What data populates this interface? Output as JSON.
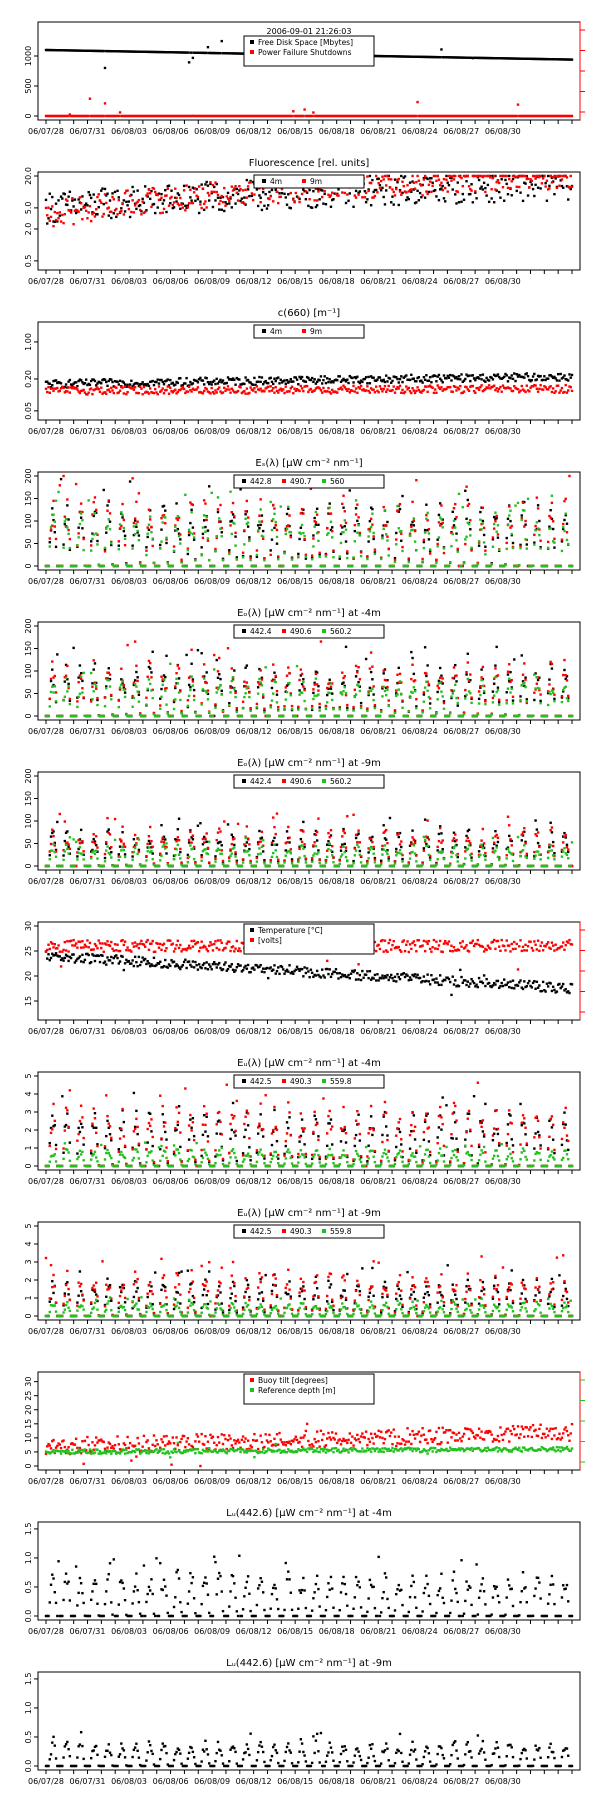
{
  "timestamp": "2006-09-01 21:26:03",
  "dates": [
    "06/07/28",
    "06/07/31",
    "06/08/03",
    "06/08/06",
    "06/08/09",
    "06/08/12",
    "06/08/15",
    "06/08/18",
    "06/08/21",
    "06/08/24",
    "06/08/27",
    "06/08/30"
  ],
  "colors": {
    "black": "#000000",
    "red": "#ff0000",
    "green": "#22c01e"
  },
  "chart_data": [
    {
      "type": "scatter",
      "title": "",
      "ylabel_left_ticks": [
        "0",
        "500",
        "1000"
      ],
      "ylim": [
        0,
        1500
      ],
      "legend_position": "top-center",
      "series": [
        {
          "name": "Free Disk Space [Mbytes]",
          "color": "black",
          "trend": [
            1100,
            940
          ],
          "jitter": 0
        },
        {
          "name": "Power Failure Shutdowns",
          "color": "red",
          "trend": [
            0,
            0
          ],
          "jitter": 0
        }
      ],
      "has_right_axis": true
    },
    {
      "type": "scatter",
      "title": "Fluorescence [rel. units]",
      "yscale": "log",
      "yticks": [
        "0.5",
        "2.0",
        "5.0",
        "20.0"
      ],
      "ylim": [
        0.4,
        20
      ],
      "legend_position": "top-center",
      "series": [
        {
          "name": "4m",
          "color": "black",
          "trend": [
            5,
            14
          ],
          "jitter": 0.6
        },
        {
          "name": "9m",
          "color": "red",
          "trend": [
            3.5,
            20
          ],
          "jitter": 0.5
        }
      ]
    },
    {
      "type": "scatter",
      "title": "c(660) [m⁻¹]",
      "yscale": "log",
      "yticks": [
        "0.05",
        "0.20",
        "1.00"
      ],
      "ylim": [
        0.04,
        2
      ],
      "legend_position": "top-center",
      "series": [
        {
          "name": "4m",
          "color": "black",
          "trend": [
            0.16,
            0.22
          ],
          "jitter": 0.15
        },
        {
          "name": "9m",
          "color": "red",
          "trend": [
            0.12,
            0.13
          ],
          "jitter": 0.15
        }
      ]
    },
    {
      "type": "scatter",
      "title": "Eₛ(λ) [μW cm⁻² nm⁻¹]",
      "yticks": [
        "0",
        "50",
        "100",
        "150",
        "200"
      ],
      "ylim": [
        0,
        200
      ],
      "legend_position": "top-center",
      "series": [
        {
          "name": "442.8",
          "color": "black",
          "peak": 150
        },
        {
          "name": "490.7",
          "color": "red",
          "peak": 160
        },
        {
          "name": "560",
          "color": "green",
          "peak": 130
        }
      ]
    },
    {
      "type": "scatter",
      "title": "Eₒ(λ) [μW cm⁻² nm⁻¹] at -4m",
      "yticks": [
        "0",
        "50",
        "100",
        "150",
        "200"
      ],
      "ylim": [
        0,
        200
      ],
      "legend_position": "top-center",
      "series": [
        {
          "name": "442.4",
          "color": "black",
          "peak": 120
        },
        {
          "name": "490.6",
          "color": "red",
          "peak": 130
        },
        {
          "name": "560.2",
          "color": "green",
          "peak": 90
        }
      ]
    },
    {
      "type": "scatter",
      "title": "Eₒ(λ) [μW cm⁻² nm⁻¹] at -9m",
      "yticks": [
        "0",
        "50",
        "100",
        "150",
        "200"
      ],
      "ylim": [
        0,
        200
      ],
      "legend_position": "top-center",
      "series": [
        {
          "name": "442.4",
          "color": "black",
          "peak": 85
        },
        {
          "name": "490.6",
          "color": "red",
          "peak": 90
        },
        {
          "name": "560.2",
          "color": "green",
          "peak": 50
        }
      ]
    },
    {
      "type": "scatter",
      "title": "",
      "yticks": [
        "15",
        "20",
        "25",
        "30"
      ],
      "ylim": [
        12,
        30
      ],
      "legend_position": "top-center",
      "series": [
        {
          "name": "Temperature [°C]",
          "color": "black",
          "trend": [
            24,
            17.5
          ],
          "jitter": 1.0
        },
        {
          "name": "[volts]",
          "color": "red",
          "trend": [
            26,
            26
          ],
          "jitter": 1.2
        }
      ],
      "has_right_axis": true
    },
    {
      "type": "scatter",
      "title": "Eᵤ(λ) [μW cm⁻² nm⁻¹] at -4m",
      "yticks": [
        "0",
        "1",
        "2",
        "3",
        "4",
        "5"
      ],
      "ylim": [
        0,
        5
      ],
      "legend_position": "top-center",
      "series": [
        {
          "name": "442.5",
          "color": "black",
          "peak": 3.2
        },
        {
          "name": "490.3",
          "color": "red",
          "peak": 3.6
        },
        {
          "name": "559.8",
          "color": "green",
          "peak": 1.0
        }
      ]
    },
    {
      "type": "scatter",
      "title": "Eᵤ(λ) [μW cm⁻² nm⁻¹] at -9m",
      "yticks": [
        "0",
        "1",
        "2",
        "3",
        "4",
        "5"
      ],
      "ylim": [
        0,
        5
      ],
      "legend_position": "top-center",
      "series": [
        {
          "name": "442.5",
          "color": "black",
          "peak": 2.2
        },
        {
          "name": "490.3",
          "color": "red",
          "peak": 2.6
        },
        {
          "name": "559.8",
          "color": "green",
          "peak": 0.8
        }
      ]
    },
    {
      "type": "scatter",
      "title": "",
      "yticks": [
        "0",
        "5",
        "10",
        "15",
        "20",
        "25",
        "30"
      ],
      "ylim": [
        0,
        32
      ],
      "legend_position": "top-center",
      "series": [
        {
          "name": "Buoy tilt [degrees]",
          "color": "red",
          "trend": [
            7,
            12
          ],
          "jitter": 3.0
        },
        {
          "name": "Reference depth [m]",
          "color": "green",
          "trend": [
            5,
            6
          ],
          "jitter": 0.8
        }
      ],
      "has_right_axis": true
    },
    {
      "type": "scatter",
      "title": "Lᵤ(442.6) [μW cm⁻² nm⁻¹] at -4m",
      "yticks": [
        "0.0",
        "0.5",
        "1.0",
        "1.5"
      ],
      "ylim": [
        0,
        1.55
      ],
      "series": [
        {
          "name": "442.6",
          "color": "black",
          "peak": 0.8
        }
      ]
    },
    {
      "type": "scatter",
      "title": "Lᵤ(442.6) [μW cm⁻² nm⁻¹] at -9m",
      "yticks": [
        "0.0",
        "0.5",
        "1.0",
        "1.5"
      ],
      "ylim": [
        0,
        1.55
      ],
      "series": [
        {
          "name": "442.6",
          "color": "black",
          "peak": 0.45
        }
      ]
    }
  ]
}
